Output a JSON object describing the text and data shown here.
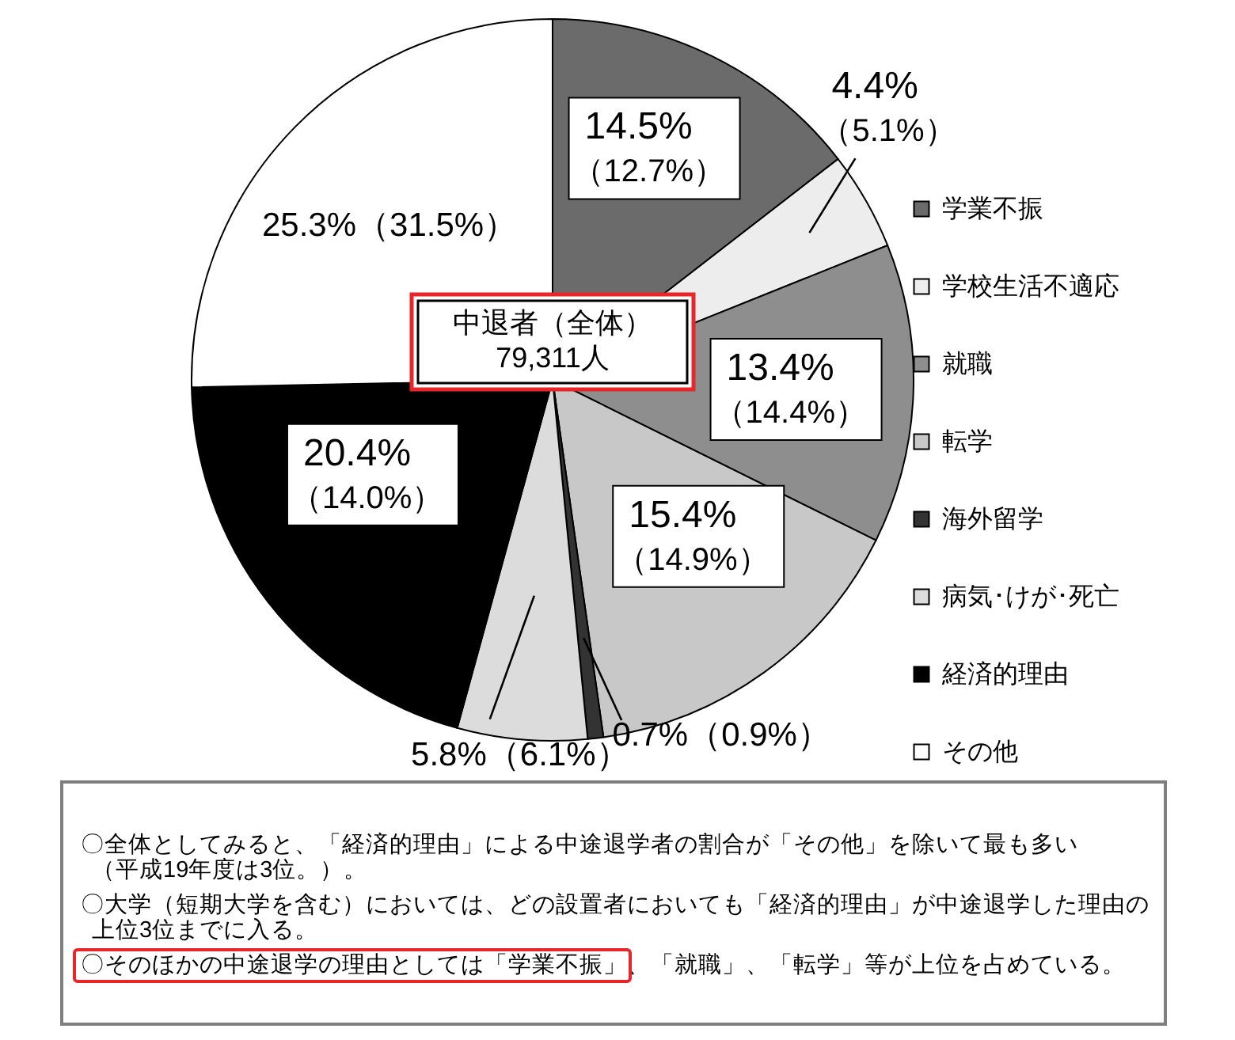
{
  "chart_data": {
    "type": "pie",
    "categories": [
      "学業不振",
      "学校生活不適応",
      "就職",
      "転学",
      "海外留学",
      "病気･けが･死亡",
      "経済的理由",
      "その他"
    ],
    "values": [
      14.5,
      4.4,
      13.4,
      15.4,
      0.7,
      5.8,
      20.4,
      25.3
    ],
    "colors": [
      "#6b6b6b",
      "#ededed",
      "#8e8e8e",
      "#c8c8c8",
      "#333333",
      "#dcdcdc",
      "#000000",
      "#ffffff"
    ],
    "value_labels": [
      "14.5%（12.7%）",
      "4.4%（5.1%）",
      "13.4%（14.4%）",
      "15.4%（14.9%）",
      "0.7%（0.9%）",
      "5.8%（6.1%）",
      "20.4%（14.0%）",
      "25.3%（31.5%）"
    ],
    "legend": "right",
    "annotations": [
      "中退者（全体）\n79,311人",
      "〇全体としてみると、「経済的理由」による中途退学者の割合が「その他」を除いて最も多い（平成19年度は3位。）。",
      "〇大学（短期大学を含む）においては、どの設置者においても「経済的理由」が中途退学した理由の上位3位までに入る。",
      "〇そのほかの中途退学の理由としては「学業不振」、「就職」、「転学」等が上位を占めている。"
    ]
  }
}
